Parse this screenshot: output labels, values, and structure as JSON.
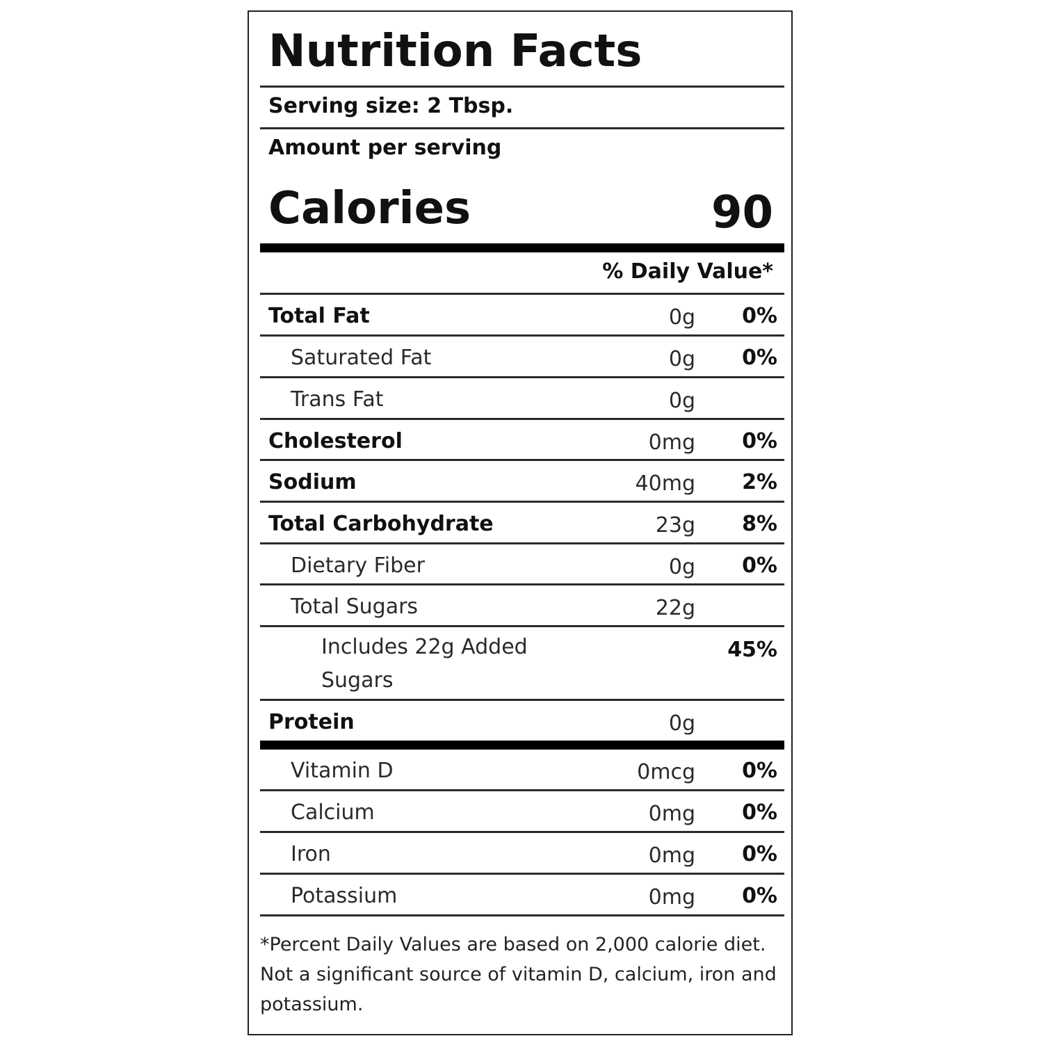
{
  "title": "Nutrition Facts",
  "serving_size": "Serving size: 2 Tbsp.",
  "amount_per_serving": "Amount per serving",
  "calories_label": "Calories",
  "calories_value": "90",
  "daily_value_header": "% Daily Value*",
  "nutrients": [
    {
      "name": "Total Fat",
      "amount": "0g",
      "dv": "0%",
      "style": "bold"
    },
    {
      "name": "Saturated Fat",
      "amount": "0g",
      "dv": "0%",
      "style": "sub"
    },
    {
      "name": "Trans Fat",
      "amount": "0g",
      "dv": "",
      "style": "sub"
    },
    {
      "name": "Cholesterol",
      "amount": "0mg",
      "dv": "0%",
      "style": "bold"
    },
    {
      "name": "Sodium",
      "amount": "40mg",
      "dv": "2%",
      "style": "bold"
    },
    {
      "name": "Total Carbohydrate",
      "amount": "23g",
      "dv": "8%",
      "style": "bold"
    },
    {
      "name": "Dietary Fiber",
      "amount": "0g",
      "dv": "0%",
      "style": "sub"
    },
    {
      "name": "Total Sugars",
      "amount": "22g",
      "dv": "",
      "style": "sub"
    },
    {
      "name": "Includes 22g Added Sugars",
      "amount": "",
      "dv": "45%",
      "style": "subsub"
    },
    {
      "name": "Protein",
      "amount": "0g",
      "dv": "",
      "style": "bold"
    }
  ],
  "vitamins": [
    {
      "name": "Vitamin D",
      "amount": "0mcg",
      "dv": "0%"
    },
    {
      "name": "Calcium",
      "amount": "0mg",
      "dv": "0%"
    },
    {
      "name": "Iron",
      "amount": "0mg",
      "dv": "0%"
    },
    {
      "name": "Potassium",
      "amount": "0mg",
      "dv": "0%"
    }
  ],
  "footnote": "*Percent Daily Values are based on 2,000 calorie diet. Not a significant source of vitamin D, calcium, iron and potassium."
}
